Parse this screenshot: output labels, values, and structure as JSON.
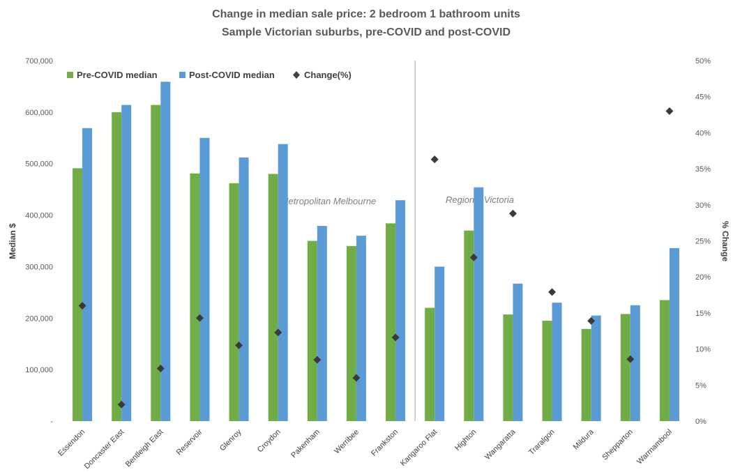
{
  "chart_data": {
    "type": "bar",
    "title": "Change in median sale price: 2 bedroom 1 bathroom units",
    "subtitle": "Sample Victorian suburbs, pre-COVID and post-COVID",
    "ylabel": "Median $",
    "y2label": "% Change",
    "ylim": [
      0,
      700000
    ],
    "y2lim": [
      0,
      50
    ],
    "y_ticks": [
      "-",
      "100,000",
      "200,000",
      "300,000",
      "400,000",
      "500,000",
      "600,000",
      "700,000"
    ],
    "y2_ticks": [
      "0%",
      "5%",
      "10%",
      "15%",
      "20%",
      "25%",
      "30%",
      "35%",
      "40%",
      "45%",
      "50%"
    ],
    "grid": false,
    "legend_position": "top-left",
    "categories": [
      "Essendon",
      "Doncaster East",
      "Bentleigh East",
      "Reservoir",
      "Glenroy",
      "Croydon",
      "Pakenham",
      "Werribee",
      "Frankston",
      "Kangaroo Flat",
      "Highton",
      "Wangaratta",
      "Traralgon",
      "Mildura",
      "Shepparton",
      "Warrnambool"
    ],
    "series": [
      {
        "name": "Pre-COVID median",
        "type": "bar",
        "axis": "left",
        "color": "#70ad47",
        "values": [
          491000,
          600000,
          614000,
          481000,
          462000,
          480000,
          350000,
          340000,
          384000,
          220000,
          370000,
          207000,
          195000,
          179000,
          208000,
          235000
        ]
      },
      {
        "name": "Post-COVID median",
        "type": "bar",
        "axis": "left",
        "color": "#5b9bd5",
        "values": [
          569000,
          614000,
          659000,
          550000,
          512000,
          538000,
          379000,
          360000,
          429000,
          300000,
          454000,
          267000,
          230000,
          205000,
          225000,
          336000
        ]
      },
      {
        "name": "Change(%)",
        "type": "scatter",
        "marker": "diamond",
        "axis": "right",
        "color": "#404040",
        "values": [
          16.0,
          2.3,
          7.3,
          14.3,
          10.5,
          12.3,
          8.5,
          6.0,
          11.6,
          36.3,
          22.7,
          28.8,
          17.9,
          13.9,
          8.6,
          43.0
        ]
      }
    ],
    "regions": [
      {
        "label": "Metropolitan Melbourne"
      },
      {
        "label": "Regional Victoria"
      }
    ]
  }
}
